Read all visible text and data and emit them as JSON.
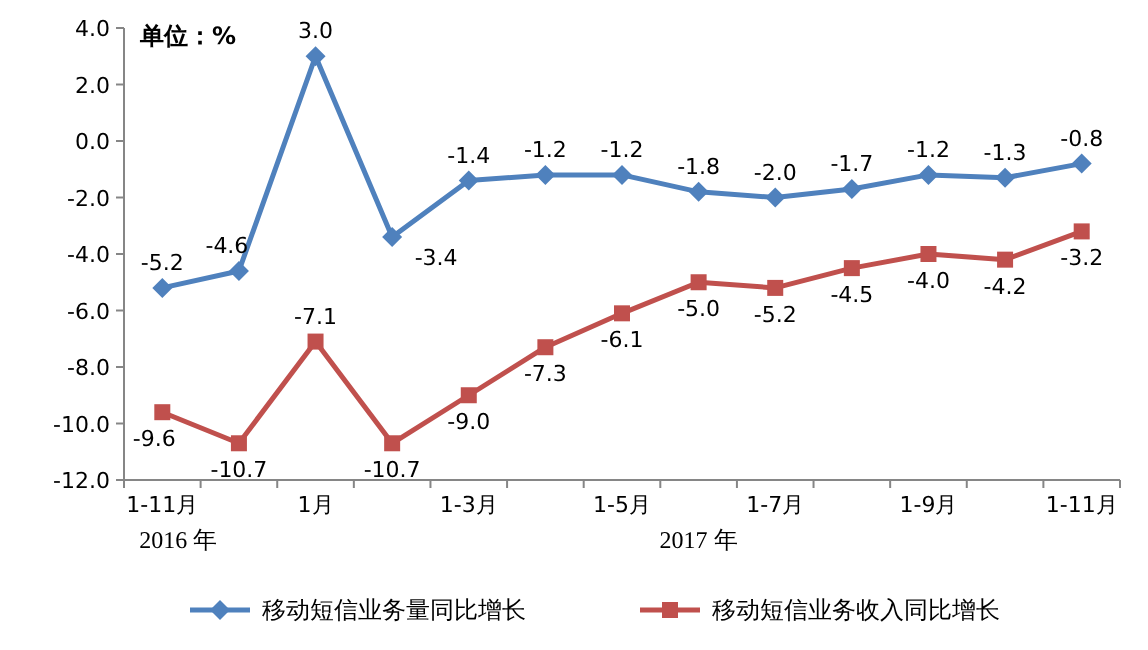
{
  "chart_data": {
    "type": "line",
    "ylabel": "单位：%",
    "categories": [
      "1-11月",
      null,
      "1月",
      null,
      "1-3月",
      null,
      "1-5月",
      null,
      "1-7月",
      null,
      "1-9月",
      null,
      "1-11月"
    ],
    "series": [
      {
        "name": "移动短信业务量同比增长",
        "color": "#4f81bd",
        "marker": "diamond",
        "values": [
          -5.2,
          -4.6,
          3.0,
          -3.4,
          -1.4,
          -1.2,
          -1.2,
          -1.8,
          -2.0,
          -1.7,
          -1.2,
          -1.3,
          -0.8
        ],
        "value_labels": [
          "-5.2",
          "-4.6",
          "3.0",
          "-3.4",
          "-1.4",
          "-1.2",
          "-1.2",
          "-1.8",
          "-2.0",
          "-1.7",
          "-1.2",
          "-1.3",
          "-0.8"
        ]
      },
      {
        "name": "移动短信业务收入同比增长",
        "color": "#c0504d",
        "marker": "square",
        "values": [
          -9.6,
          -10.7,
          -7.1,
          -10.7,
          -9.0,
          -7.3,
          -6.1,
          -5.0,
          -5.2,
          -4.5,
          -4.0,
          -4.2,
          -3.2
        ],
        "value_labels": [
          "-9.6",
          "-10.7",
          "-7.1",
          "-10.7",
          "-9.0",
          "-7.3",
          "-6.1",
          "-5.0",
          "-5.2",
          "-4.5",
          "-4.0",
          "-4.2",
          "-3.2"
        ]
      }
    ],
    "ylim": [
      -12,
      4
    ],
    "yticks": [
      {
        "value": -12,
        "label": "-12.0"
      },
      {
        "value": -10,
        "label": "-10.0"
      },
      {
        "value": -8,
        "label": "-8.0"
      },
      {
        "value": -6,
        "label": "-6.0"
      },
      {
        "value": -4,
        "label": "-4.0"
      },
      {
        "value": -2,
        "label": "-2.0"
      },
      {
        "value": 0,
        "label": "0.0"
      },
      {
        "value": 2,
        "label": "2.0"
      },
      {
        "value": 4,
        "label": "4.0"
      }
    ],
    "annotations": [
      "2016 年",
      "2017 年"
    ],
    "legend": "bottom",
    "line_style": "solid"
  }
}
